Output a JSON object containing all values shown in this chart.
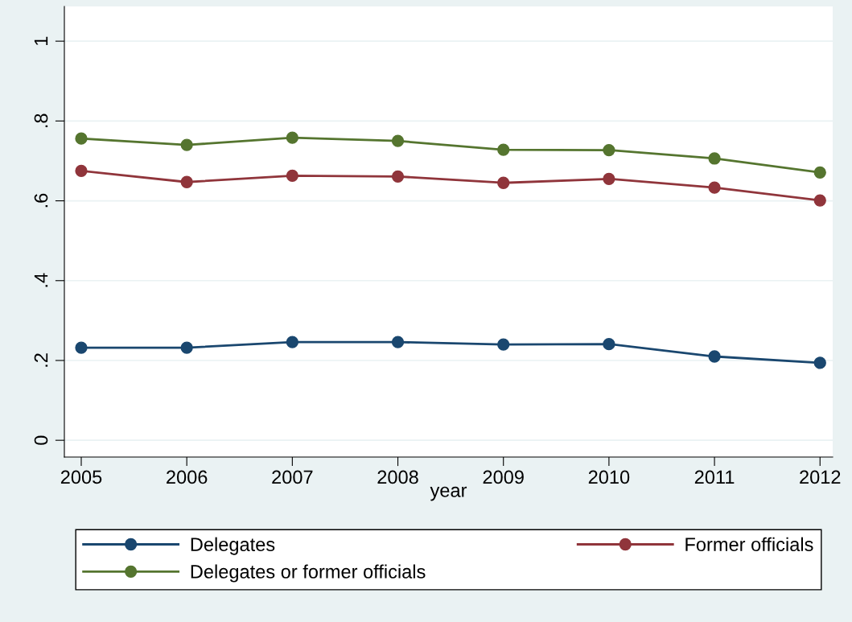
{
  "chart_data": {
    "type": "line",
    "xlabel": "year",
    "x": [
      2005,
      2006,
      2007,
      2008,
      2009,
      2010,
      2011,
      2012
    ],
    "series": [
      {
        "name": "Delegates",
        "color": "#1a476f",
        "values": [
          0.232,
          0.232,
          0.246,
          0.246,
          0.24,
          0.241,
          0.21,
          0.194
        ]
      },
      {
        "name": "Former officials",
        "color": "#90353b",
        "values": [
          0.675,
          0.647,
          0.663,
          0.661,
          0.645,
          0.655,
          0.633,
          0.601
        ]
      },
      {
        "name": "Delegates or former officials",
        "color": "#55752f",
        "values": [
          0.756,
          0.74,
          0.758,
          0.75,
          0.728,
          0.727,
          0.706,
          0.671
        ]
      }
    ],
    "xlim": [
      2004.84,
      2012.12
    ],
    "xticks": [
      2005,
      2006,
      2007,
      2008,
      2009,
      2010,
      2011,
      2012
    ],
    "ylim": [
      -0.042,
      1.087
    ],
    "yticks": [
      {
        "value": 0,
        "label": "0"
      },
      {
        "value": 0.2,
        "label": ".2"
      },
      {
        "value": 0.4,
        "label": ".4"
      },
      {
        "value": 0.6,
        "label": ".6"
      },
      {
        "value": 0.8,
        "label": ".8"
      },
      {
        "value": 1,
        "label": "1"
      }
    ],
    "grid": "y",
    "legend": "bottom",
    "marker": "circle",
    "line_style": "solid"
  }
}
